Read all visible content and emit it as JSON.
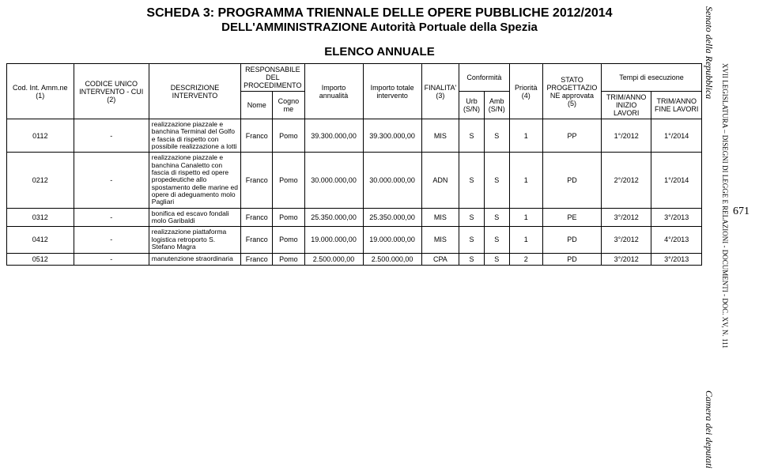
{
  "title_line1": "SCHEDA 3: PROGRAMMA TRIENNALE DELLE OPERE PUBBLICHE 2012/2014",
  "title_line2": "DELL'AMMINISTRAZIONE Autorità Portuale della Spezia",
  "title_elenco": "ELENCO ANNUALE",
  "side": {
    "senato": "Senato della Repubblica",
    "camera": "Camera dei deputati",
    "leg": "XVII LEGISLATURA – DISEGNI DI LEGGE E RELAZIONI - DOCUMENTI - DOC. XV, N. 111",
    "page": "671"
  },
  "hdr": {
    "cod": "Cod. Int. Amm.ne (1)",
    "cui": "CODICE UNICO INTERVENTO - CUI (2)",
    "desc": "DESCRIZIONE INTERVENTO",
    "resp": "RESPONSABILE DEL PROCEDIMENTO",
    "nome": "Nome",
    "cognome": "Cognome",
    "imp_ann": "Importo annualità",
    "imp_tot": "Importo totale intervento",
    "finalita": "FINALITA' (3)",
    "conformita": "Conformità",
    "urb": "Urb (S/N)",
    "amb": "Amb (S/N)",
    "priorita": "Priorità (4)",
    "stato": "STATO PROGETTAZIONE approvata (5)",
    "tempi": "Tempi di esecuzione",
    "t1": "TRIM/ANNO INIZIO LAVORI",
    "t2": "TRIM/ANNO FINE LAVORI"
  },
  "rows": [
    {
      "cod": "0112",
      "cui": "-",
      "desc": "realizzazione piazzale e banchina Terminal del Golfo e fascia di rispetto con possibile realizzazione a lotti",
      "nome": "Franco",
      "cognome": "Pomo",
      "imp_ann": "39.300.000,00",
      "imp_tot": "39.300.000,00",
      "fin": "MIS",
      "urb": "S",
      "amb": "S",
      "prio": "1",
      "stato": "PP",
      "t1": "1°/2012",
      "t2": "1°/2014"
    },
    {
      "cod": "0212",
      "cui": "-",
      "desc": "realizzazione piazzale e banchina Canaletto con fascia di rispetto ed opere propedeutiche allo spostamento delle marine ed opere di adeguamento molo Pagliari",
      "nome": "Franco",
      "cognome": "Pomo",
      "imp_ann": "30.000.000,00",
      "imp_tot": "30.000.000,00",
      "fin": "ADN",
      "urb": "S",
      "amb": "S",
      "prio": "1",
      "stato": "PD",
      "t1": "2°/2012",
      "t2": "1°/2014"
    },
    {
      "cod": "0312",
      "cui": "-",
      "desc": "bonifica ed escavo fondali molo Garibaldi",
      "nome": "Franco",
      "cognome": "Pomo",
      "imp_ann": "25.350.000,00",
      "imp_tot": "25.350.000,00",
      "fin": "MIS",
      "urb": "S",
      "amb": "S",
      "prio": "1",
      "stato": "PE",
      "t1": "3°/2012",
      "t2": "3°/2013"
    },
    {
      "cod": "0412",
      "cui": "-",
      "desc": "realizzazione piattaforma logistica retroporto S. Stefano Magra",
      "nome": "Franco",
      "cognome": "Pomo",
      "imp_ann": "19.000.000,00",
      "imp_tot": "19.000.000,00",
      "fin": "MIS",
      "urb": "S",
      "amb": "S",
      "prio": "1",
      "stato": "PD",
      "t1": "3°/2012",
      "t2": "4°/2013"
    },
    {
      "cod": "0512",
      "cui": "-",
      "desc": "manutenzione straordinaria",
      "nome": "Franco",
      "cognome": "Pomo",
      "imp_ann": "2.500.000,00",
      "imp_tot": "2.500.000,00",
      "fin": "CPA",
      "urb": "S",
      "amb": "S",
      "prio": "2",
      "stato": "PD",
      "t1": "3°/2012",
      "t2": "3°/2013"
    }
  ]
}
